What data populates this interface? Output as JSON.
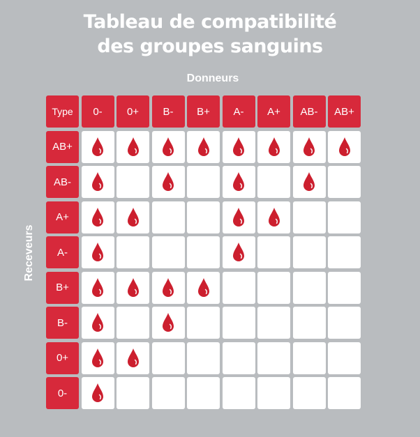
{
  "title": {
    "line1": "Tableau de compatibilité",
    "line2": "des groupes sanguins"
  },
  "donors_label": "Donneurs",
  "receivers_label": "Receveurs",
  "corner_label": "Type",
  "donor_types": [
    "0-",
    "0+",
    "B-",
    "B+",
    "A-",
    "A+",
    "AB-",
    "AB+"
  ],
  "rows": [
    {
      "type": "AB+",
      "compatible": [
        true,
        true,
        true,
        true,
        true,
        true,
        true,
        true
      ]
    },
    {
      "type": "AB-",
      "compatible": [
        true,
        false,
        true,
        false,
        true,
        false,
        true,
        false
      ]
    },
    {
      "type": "A+",
      "compatible": [
        true,
        true,
        false,
        false,
        true,
        true,
        false,
        false
      ]
    },
    {
      "type": "A-",
      "compatible": [
        true,
        false,
        false,
        false,
        true,
        false,
        false,
        false
      ]
    },
    {
      "type": "B+",
      "compatible": [
        true,
        true,
        true,
        true,
        false,
        false,
        false,
        false
      ]
    },
    {
      "type": "B-",
      "compatible": [
        true,
        false,
        true,
        false,
        false,
        false,
        false,
        false
      ]
    },
    {
      "type": "0+",
      "compatible": [
        true,
        true,
        false,
        false,
        false,
        false,
        false,
        false
      ]
    },
    {
      "type": "0-",
      "compatible": [
        true,
        false,
        false,
        false,
        false,
        false,
        false,
        false
      ]
    }
  ],
  "icons": {
    "compatible": "blood-drop-icon"
  },
  "colors": {
    "accent": "#d7293b",
    "drop": "#cc1f2e",
    "background": "#b9bcbf"
  }
}
